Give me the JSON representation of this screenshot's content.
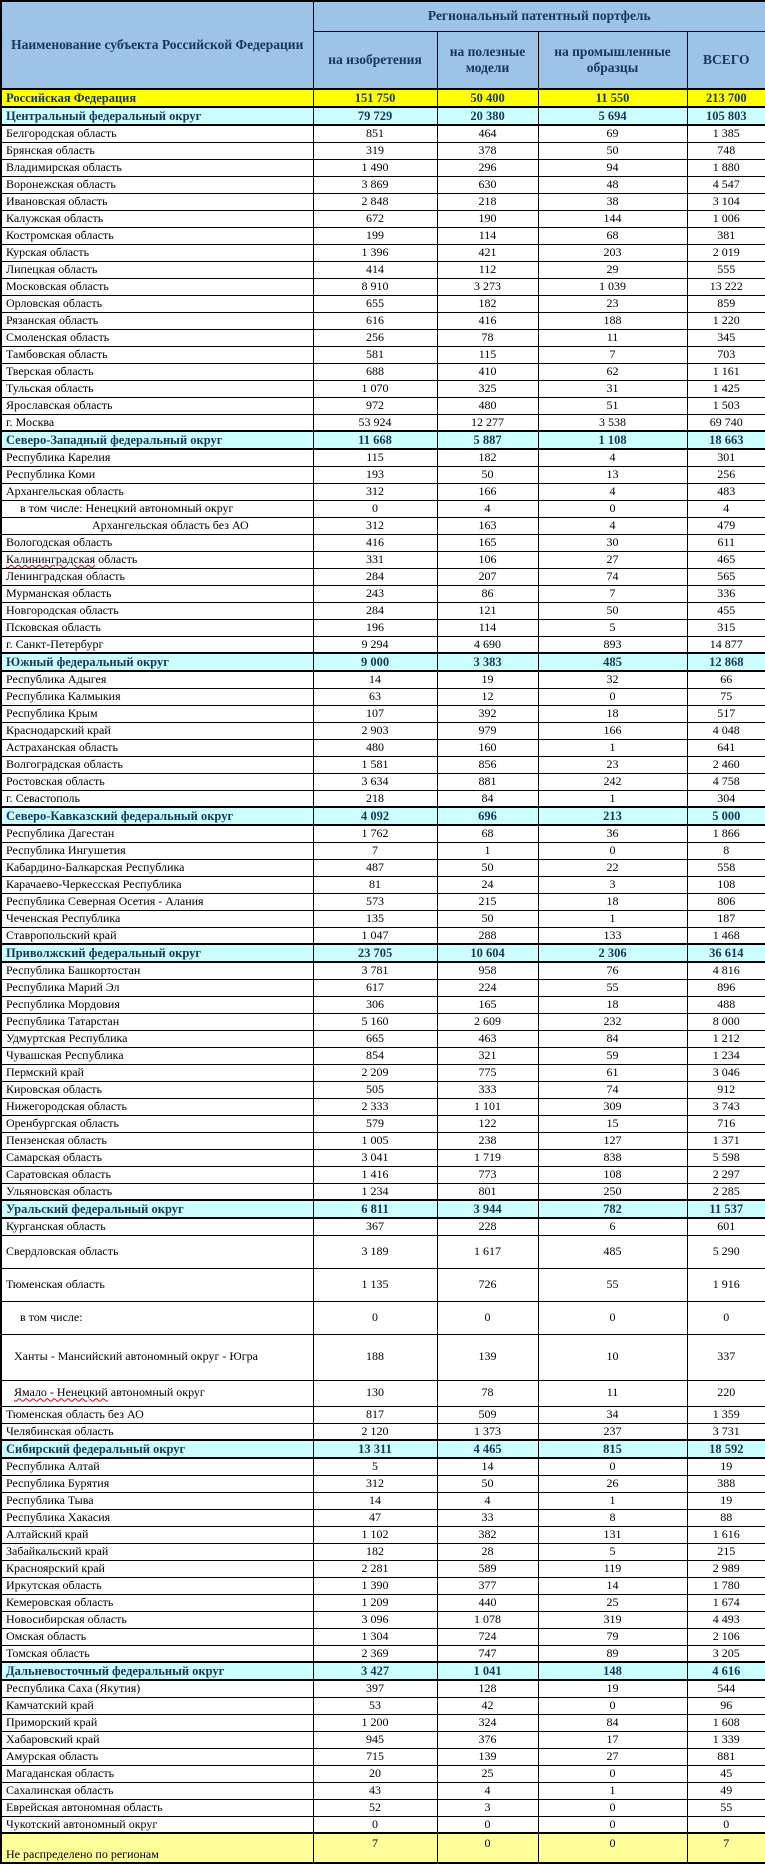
{
  "header": {
    "name_col": "Наименование субъекта Российской Федерации",
    "group": "Региональный  патентный  портфель",
    "columns": [
      "на изобретения",
      "на полезные модели",
      "на промышленные образцы",
      "ВСЕГО"
    ]
  },
  "colors": {
    "header_bg": "#9DC3E6",
    "header_text": "#17365D",
    "total_bg": "#FFFF00",
    "district_bg": "#CCFFFF",
    "unallocated_bg": "#FFFF99",
    "border": "#000000"
  },
  "table": {
    "rows": [
      {
        "name": "Российская Федерация",
        "values": [
          "151 750",
          "50 400",
          "11 550",
          "213 700"
        ],
        "style": "total"
      },
      {
        "name": "Центральный федеральный округ",
        "values": [
          "79 729",
          "20 380",
          "5 694",
          "105 803"
        ],
        "style": "district"
      },
      {
        "name": "Белгородская область",
        "values": [
          "851",
          "464",
          "69",
          "1 385"
        ]
      },
      {
        "name": "Брянская область",
        "values": [
          "319",
          "378",
          "50",
          "748"
        ]
      },
      {
        "name": "Владимирская область",
        "values": [
          "1 490",
          "296",
          "94",
          "1 880"
        ]
      },
      {
        "name": "Воронежская область",
        "values": [
          "3 869",
          "630",
          "48",
          "4 547"
        ]
      },
      {
        "name": "Ивановская область",
        "values": [
          "2 848",
          "218",
          "38",
          "3 104"
        ]
      },
      {
        "name": "Калужская область",
        "values": [
          "672",
          "190",
          "144",
          "1 006"
        ]
      },
      {
        "name": "Костромская область",
        "values": [
          "199",
          "114",
          "68",
          "381"
        ]
      },
      {
        "name": "Курская область",
        "values": [
          "1 396",
          "421",
          "203",
          "2 019"
        ]
      },
      {
        "name": "Липецкая область",
        "values": [
          "414",
          "112",
          "29",
          "555"
        ]
      },
      {
        "name": "Московская область",
        "values": [
          "8 910",
          "3 273",
          "1 039",
          "13 222"
        ]
      },
      {
        "name": "Орловская область",
        "values": [
          "655",
          "182",
          "23",
          "859"
        ]
      },
      {
        "name": "Рязанская область",
        "values": [
          "616",
          "416",
          "188",
          "1 220"
        ]
      },
      {
        "name": "Смоленская область",
        "values": [
          "256",
          "78",
          "11",
          "345"
        ]
      },
      {
        "name": "Тамбовская область",
        "values": [
          "581",
          "115",
          "7",
          "703"
        ]
      },
      {
        "name": "Тверская область",
        "values": [
          "688",
          "410",
          "62",
          "1 161"
        ]
      },
      {
        "name": "Тульская область",
        "values": [
          "1 070",
          "325",
          "31",
          "1 425"
        ]
      },
      {
        "name": "Ярославская область",
        "values": [
          "972",
          "480",
          "51",
          "1 503"
        ]
      },
      {
        "name": "г. Москва",
        "values": [
          "53 924",
          "12 277",
          "3 538",
          "69 740"
        ]
      },
      {
        "name": "Северо-Западный федеральный округ",
        "values": [
          "11 668",
          "5 887",
          "1 108",
          "18 663"
        ],
        "style": "district"
      },
      {
        "name": "Республика Карелия",
        "values": [
          "115",
          "182",
          "4",
          "301"
        ]
      },
      {
        "name": "Республика Коми",
        "values": [
          "193",
          "50",
          "13",
          "256"
        ]
      },
      {
        "name": "Архангельская область",
        "values": [
          "312",
          "166",
          "4",
          "483"
        ]
      },
      {
        "name": "в том числе: Ненецкий автономный округ",
        "values": [
          "0",
          "4",
          "0",
          "4"
        ],
        "indent": 2
      },
      {
        "name": "Архангельская область без АО",
        "values": [
          "312",
          "163",
          "4",
          "479"
        ],
        "indent": 3
      },
      {
        "name": "Вологодская область",
        "values": [
          "416",
          "165",
          "30",
          "611"
        ]
      },
      {
        "name": "Калининградская область",
        "values": [
          "331",
          "106",
          "27",
          "465"
        ],
        "squiggle": "Калининградская"
      },
      {
        "name": "Ленинградская область",
        "values": [
          "284",
          "207",
          "74",
          "565"
        ]
      },
      {
        "name": "Мурманская область",
        "values": [
          "243",
          "86",
          "7",
          "336"
        ]
      },
      {
        "name": "Новгородская область",
        "values": [
          "284",
          "121",
          "50",
          "455"
        ]
      },
      {
        "name": "Псковская область",
        "values": [
          "196",
          "114",
          "5",
          "315"
        ]
      },
      {
        "name": "г. Санкт-Петербург",
        "values": [
          "9 294",
          "4 690",
          "893",
          "14 877"
        ]
      },
      {
        "name": "Южный федеральный округ",
        "values": [
          "9 000",
          "3 383",
          "485",
          "12 868"
        ],
        "style": "district"
      },
      {
        "name": "Республика Адыгея",
        "values": [
          "14",
          "19",
          "32",
          "66"
        ]
      },
      {
        "name": "Республика Калмыкия",
        "values": [
          "63",
          "12",
          "0",
          "75"
        ]
      },
      {
        "name": "Республика Крым",
        "values": [
          "107",
          "392",
          "18",
          "517"
        ]
      },
      {
        "name": "Краснодарский край",
        "values": [
          "2 903",
          "979",
          "166",
          "4 048"
        ]
      },
      {
        "name": "Астраханская область",
        "values": [
          "480",
          "160",
          "1",
          "641"
        ]
      },
      {
        "name": "Волгоградская область",
        "values": [
          "1 581",
          "856",
          "23",
          "2 460"
        ]
      },
      {
        "name": "Ростовская область",
        "values": [
          "3 634",
          "881",
          "242",
          "4 758"
        ]
      },
      {
        "name": "г. Севастополь",
        "values": [
          "218",
          "84",
          "1",
          "304"
        ]
      },
      {
        "name": "Северо-Кавказский федеральный округ",
        "values": [
          "4 092",
          "696",
          "213",
          "5 000"
        ],
        "style": "district"
      },
      {
        "name": "Республика Дагестан",
        "values": [
          "1 762",
          "68",
          "36",
          "1 866"
        ]
      },
      {
        "name": "Республика Ингушетия",
        "values": [
          "7",
          "1",
          "0",
          "8"
        ]
      },
      {
        "name": "Кабардино-Балкарская  Республика",
        "values": [
          "487",
          "50",
          "22",
          "558"
        ]
      },
      {
        "name": "Карачаево-Черкесская  Республика",
        "values": [
          "81",
          "24",
          "3",
          "108"
        ]
      },
      {
        "name": "Республика Северная Осетия - Алания",
        "values": [
          "573",
          "215",
          "18",
          "806"
        ]
      },
      {
        "name": "Чеченская Республика",
        "values": [
          "135",
          "50",
          "1",
          "187"
        ]
      },
      {
        "name": "Ставропольский край",
        "values": [
          "1 047",
          "288",
          "133",
          "1 468"
        ]
      },
      {
        "name": "Приволжский федеральный округ",
        "values": [
          "23 705",
          "10 604",
          "2 306",
          "36 614"
        ],
        "style": "district"
      },
      {
        "name": "Республика Башкортостан",
        "values": [
          "3 781",
          "958",
          "76",
          "4 816"
        ]
      },
      {
        "name": "Республика Марий Эл",
        "values": [
          "617",
          "224",
          "55",
          "896"
        ]
      },
      {
        "name": "Республика Мордовия",
        "values": [
          "306",
          "165",
          "18",
          "488"
        ]
      },
      {
        "name": "Республика Татарстан",
        "values": [
          "5 160",
          "2 609",
          "232",
          "8 000"
        ]
      },
      {
        "name": "Удмуртская Республика",
        "values": [
          "665",
          "463",
          "84",
          "1 212"
        ]
      },
      {
        "name": "Чувашская Республика",
        "values": [
          "854",
          "321",
          "59",
          "1 234"
        ]
      },
      {
        "name": "Пермский край",
        "values": [
          "2 209",
          "775",
          "61",
          "3 046"
        ]
      },
      {
        "name": "Кировская область",
        "values": [
          "505",
          "333",
          "74",
          "912"
        ]
      },
      {
        "name": "Нижегородская область",
        "values": [
          "2 333",
          "1 101",
          "309",
          "3 743"
        ]
      },
      {
        "name": "Оренбургская область",
        "values": [
          "579",
          "122",
          "15",
          "716"
        ]
      },
      {
        "name": "Пензенская область",
        "values": [
          "1 005",
          "238",
          "127",
          "1 371"
        ]
      },
      {
        "name": "Самарская область",
        "values": [
          "3 041",
          "1 719",
          "838",
          "5 598"
        ]
      },
      {
        "name": "Саратовская область",
        "values": [
          "1 416",
          "773",
          "108",
          "2 297"
        ]
      },
      {
        "name": "Ульяновская область",
        "values": [
          "1 234",
          "801",
          "250",
          "2 285"
        ]
      },
      {
        "name": "Уральский федеральный округ",
        "values": [
          "6 811",
          "3 944",
          "782",
          "11 537"
        ],
        "style": "district"
      },
      {
        "name": "Курганская область",
        "values": [
          "367",
          "228",
          "6",
          "601"
        ]
      },
      {
        "name": "Свердловская область",
        "values": [
          "3 189",
          "1 617",
          "485",
          "5 290"
        ],
        "size": "m"
      },
      {
        "name": "Тюменская область",
        "values": [
          "1 135",
          "726",
          "55",
          "1 916"
        ],
        "size": "m"
      },
      {
        "name": "в том числе:",
        "values": [
          "0",
          "0",
          "0",
          "0"
        ],
        "indent": 2,
        "size": "m"
      },
      {
        "name": "Ханты - Мансийский автономный округ - Югра",
        "values": [
          "188",
          "139",
          "10",
          "337"
        ],
        "indent": 1,
        "size": "l"
      },
      {
        "name": "Ямало - Ненецкий автономный округ",
        "values": [
          "130",
          "78",
          "11",
          "220"
        ],
        "indent": 1,
        "size": "sm",
        "squiggle": "Ямало - Ненецкий"
      },
      {
        "name": "Тюменская область без АО",
        "values": [
          "817",
          "509",
          "34",
          "1 359"
        ]
      },
      {
        "name": "Челябинская область",
        "values": [
          "2 120",
          "1 373",
          "237",
          "3 731"
        ]
      },
      {
        "name": "Сибирский федеральный округ",
        "values": [
          "13 311",
          "4 465",
          "815",
          "18 592"
        ],
        "style": "district"
      },
      {
        "name": "Республика Алтай",
        "values": [
          "5",
          "14",
          "0",
          "19"
        ]
      },
      {
        "name": "Республика Бурятия",
        "values": [
          "312",
          "50",
          "26",
          "388"
        ]
      },
      {
        "name": "Республика Тыва",
        "values": [
          "14",
          "4",
          "1",
          "19"
        ]
      },
      {
        "name": "Республика Хакасия",
        "values": [
          "47",
          "33",
          "8",
          "88"
        ]
      },
      {
        "name": "Алтайский край",
        "values": [
          "1 102",
          "382",
          "131",
          "1 616"
        ]
      },
      {
        "name": "Забайкальский край",
        "values": [
          "182",
          "28",
          "5",
          "215"
        ]
      },
      {
        "name": "Красноярский край",
        "values": [
          "2 281",
          "589",
          "119",
          "2 989"
        ]
      },
      {
        "name": "Иркутская область",
        "values": [
          "1 390",
          "377",
          "14",
          "1 780"
        ]
      },
      {
        "name": "Кемеровская область",
        "values": [
          "1 209",
          "440",
          "25",
          "1 674"
        ]
      },
      {
        "name": "Новосибирская область",
        "values": [
          "3 096",
          "1 078",
          "319",
          "4 493"
        ]
      },
      {
        "name": "Омская область",
        "values": [
          "1 304",
          "724",
          "79",
          "2 106"
        ]
      },
      {
        "name": "Томская область",
        "values": [
          "2 369",
          "747",
          "89",
          "3 205"
        ]
      },
      {
        "name": "Дальневосточный  федеральный округ",
        "values": [
          "3 427",
          "1 041",
          "148",
          "4 616"
        ],
        "style": "district"
      },
      {
        "name": "Республика Саха (Якутия)",
        "values": [
          "397",
          "128",
          "19",
          "544"
        ]
      },
      {
        "name": "Камчатский край",
        "values": [
          "53",
          "42",
          "0",
          "96"
        ]
      },
      {
        "name": "Приморский край",
        "values": [
          "1 200",
          "324",
          "84",
          "1 608"
        ]
      },
      {
        "name": "Хабаровский край",
        "values": [
          "945",
          "376",
          "17",
          "1 339"
        ]
      },
      {
        "name": "Амурская область",
        "values": [
          "715",
          "139",
          "27",
          "881"
        ]
      },
      {
        "name": "Магаданская область",
        "values": [
          "20",
          "25",
          "0",
          "45"
        ]
      },
      {
        "name": "Сахалинская область",
        "values": [
          "43",
          "4",
          "1",
          "49"
        ]
      },
      {
        "name": "Еврейская автономная область",
        "values": [
          "52",
          "3",
          "0",
          "55"
        ]
      },
      {
        "name": "Чукотский автономный округ",
        "values": [
          "0",
          "0",
          "0",
          "0"
        ]
      },
      {
        "name": "Не распределено  по регионам",
        "values": [
          "7",
          "0",
          "0",
          "7"
        ],
        "style": "unallocated"
      }
    ]
  }
}
